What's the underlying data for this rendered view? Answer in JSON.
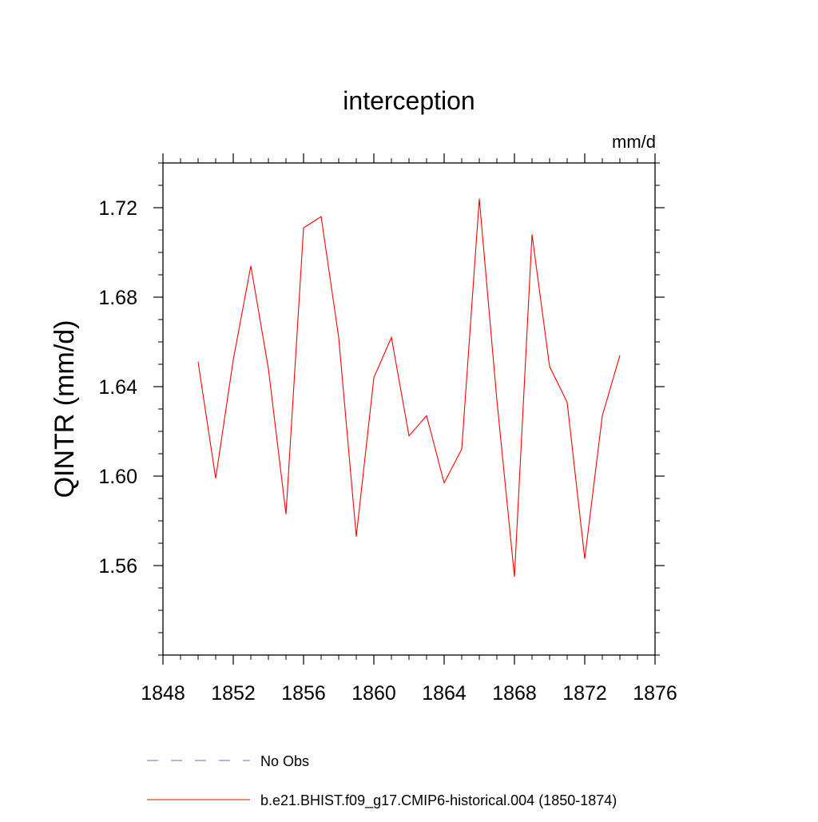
{
  "chart_data": {
    "type": "line",
    "title": "interception",
    "units": "mm/d",
    "xlabel": "",
    "ylabel": "QINTR  (mm/d)",
    "xlim": [
      1848,
      1876
    ],
    "ylim": [
      1.52,
      1.74
    ],
    "xticks": [
      1848,
      1852,
      1856,
      1860,
      1864,
      1868,
      1872,
      1876
    ],
    "xtick_labels": [
      "1848",
      "1852",
      "1856",
      "1860",
      "1864",
      "1868",
      "1872",
      "1876"
    ],
    "yticks": [
      1.56,
      1.6,
      1.64,
      1.68,
      1.72
    ],
    "ytick_labels": [
      "1.56",
      "1.60",
      "1.64",
      "1.68",
      "1.72"
    ],
    "grid": false,
    "legend_position": "bottom",
    "series": [
      {
        "name": "No Obs",
        "style": "dashed",
        "color": "#6a6acd",
        "x": [],
        "values": []
      },
      {
        "name": "b.e21.BHIST.f09_g17.CMIP6-historical.004 (1850-1874)",
        "style": "solid",
        "color": "#ff0000",
        "x": [
          1850,
          1851,
          1852,
          1853,
          1854,
          1855,
          1856,
          1857,
          1858,
          1859,
          1860,
          1861,
          1862,
          1863,
          1864,
          1865,
          1866,
          1867,
          1868,
          1869,
          1870,
          1871,
          1872,
          1873,
          1874
        ],
        "values": [
          1.651,
          1.599,
          1.652,
          1.694,
          1.648,
          1.583,
          1.711,
          1.716,
          1.662,
          1.573,
          1.644,
          1.662,
          1.618,
          1.627,
          1.597,
          1.612,
          1.724,
          1.634,
          1.555,
          1.708,
          1.649,
          1.633,
          1.563,
          1.627,
          1.654
        ]
      }
    ]
  }
}
